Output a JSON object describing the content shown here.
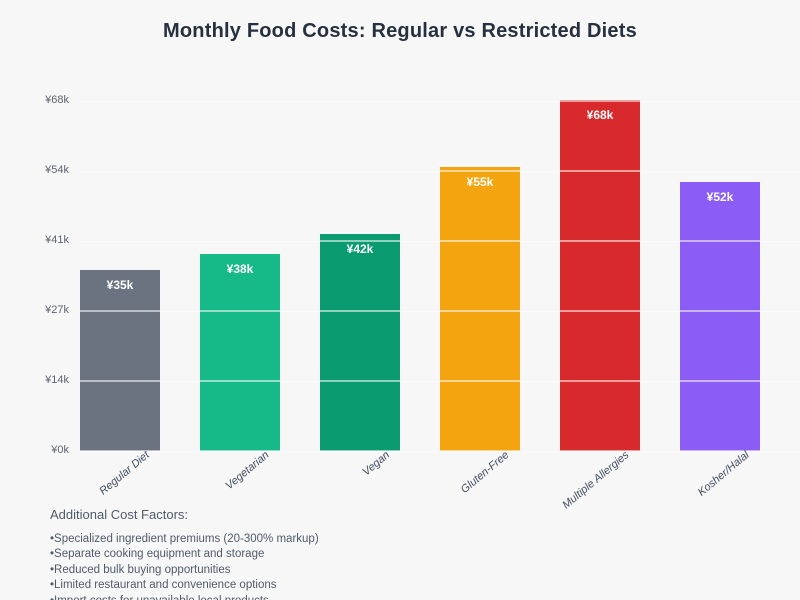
{
  "chart_data": {
    "type": "bar",
    "title": "Monthly Food Costs: Regular vs Restricted Diets",
    "categories": [
      "Regular Diet",
      "Vegetarian",
      "Vegan",
      "Gluten-Free",
      "Multiple Allergies",
      "Kosher/Halal"
    ],
    "values": [
      35,
      38,
      42,
      55,
      68,
      52
    ],
    "value_labels": [
      "¥35k",
      "¥38k",
      "¥42k",
      "¥55k",
      "¥68k",
      "¥52k"
    ],
    "bar_colors": [
      "#6b7280",
      "#16b988",
      "#0a9b70",
      "#f4a40f",
      "#d8292c",
      "#8b5cf6"
    ],
    "xlabel": "",
    "ylabel": "",
    "ylim": [
      0,
      68
    ],
    "ytick_values": [
      0,
      13.6,
      27.2,
      40.8,
      54.4,
      68
    ],
    "ytick_labels": [
      "¥0k",
      "¥14k",
      "¥27k",
      "¥41k",
      "¥54k",
      "¥68k"
    ],
    "grid": true,
    "legend": null,
    "background_color": "#f7f7f8"
  },
  "footer": {
    "heading": "Additional Cost Factors:",
    "bullets": [
      "Specialized ingredient premiums (20-300% markup)",
      "Separate cooking equipment and storage",
      "Reduced bulk buying opportunities",
      "Limited restaurant and convenience options",
      "Import costs for unavailable local products"
    ]
  }
}
